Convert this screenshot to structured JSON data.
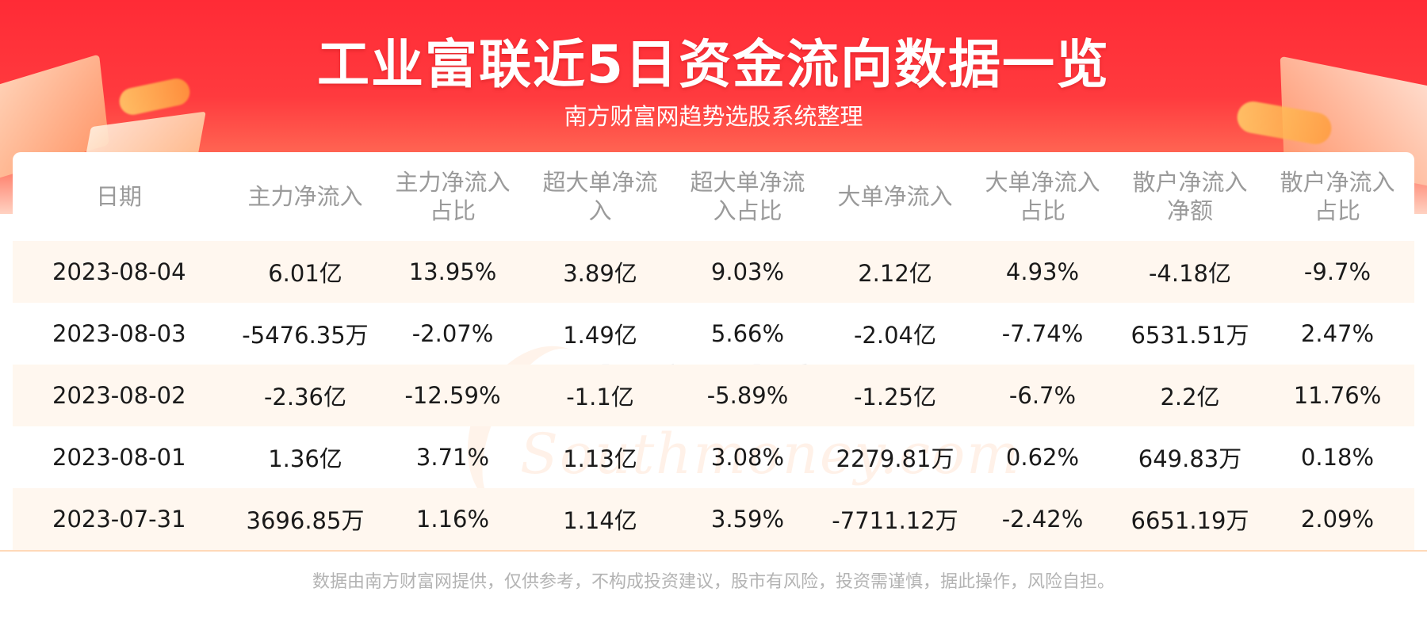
{
  "header": {
    "title": "工业富联近5日资金流向数据一览",
    "subtitle": "南方财富网趋势选股系统整理"
  },
  "watermark": {
    "cn": "南方财富网",
    "en": "Southmoney.com"
  },
  "table": {
    "headers": [
      [
        "日期"
      ],
      [
        "主力净流入"
      ],
      [
        "主力净流入",
        "占比"
      ],
      [
        "超大单净流",
        "入"
      ],
      [
        "超大单净流",
        "入占比"
      ],
      [
        "大单净流入"
      ],
      [
        "大单净流入",
        "占比"
      ],
      [
        "散户净流入",
        "净额"
      ],
      [
        "散户净流入",
        "占比"
      ]
    ],
    "rows": [
      [
        "2023-08-04",
        "6.01亿",
        "13.95%",
        "3.89亿",
        "9.03%",
        "2.12亿",
        "4.93%",
        "-4.18亿",
        "-9.7%"
      ],
      [
        "2023-08-03",
        "-5476.35万",
        "-2.07%",
        "1.49亿",
        "5.66%",
        "-2.04亿",
        "-7.74%",
        "6531.51万",
        "2.47%"
      ],
      [
        "2023-08-02",
        "-2.36亿",
        "-12.59%",
        "-1.1亿",
        "-5.89%",
        "-1.25亿",
        "-6.7%",
        "2.2亿",
        "11.76%"
      ],
      [
        "2023-08-01",
        "1.36亿",
        "3.71%",
        "1.13亿",
        "3.08%",
        "2279.81万",
        "0.62%",
        "649.83万",
        "0.18%"
      ],
      [
        "2023-07-31",
        "3696.85万",
        "1.16%",
        "1.14亿",
        "3.59%",
        "-7711.12万",
        "-2.42%",
        "6651.19万",
        "2.09%"
      ]
    ]
  },
  "footer": {
    "disclaimer": "数据由南方财富网提供，仅供参考，不构成投资建议，股市有风险，投资需谨慎，据此操作，风险自担。"
  },
  "colors": {
    "banner_red": "#ff2b36",
    "row_stripe": "#fff7ef",
    "header_text": "#9a9a9a",
    "body_text": "#1a1a1a",
    "footer_text": "#b3b3b3"
  }
}
